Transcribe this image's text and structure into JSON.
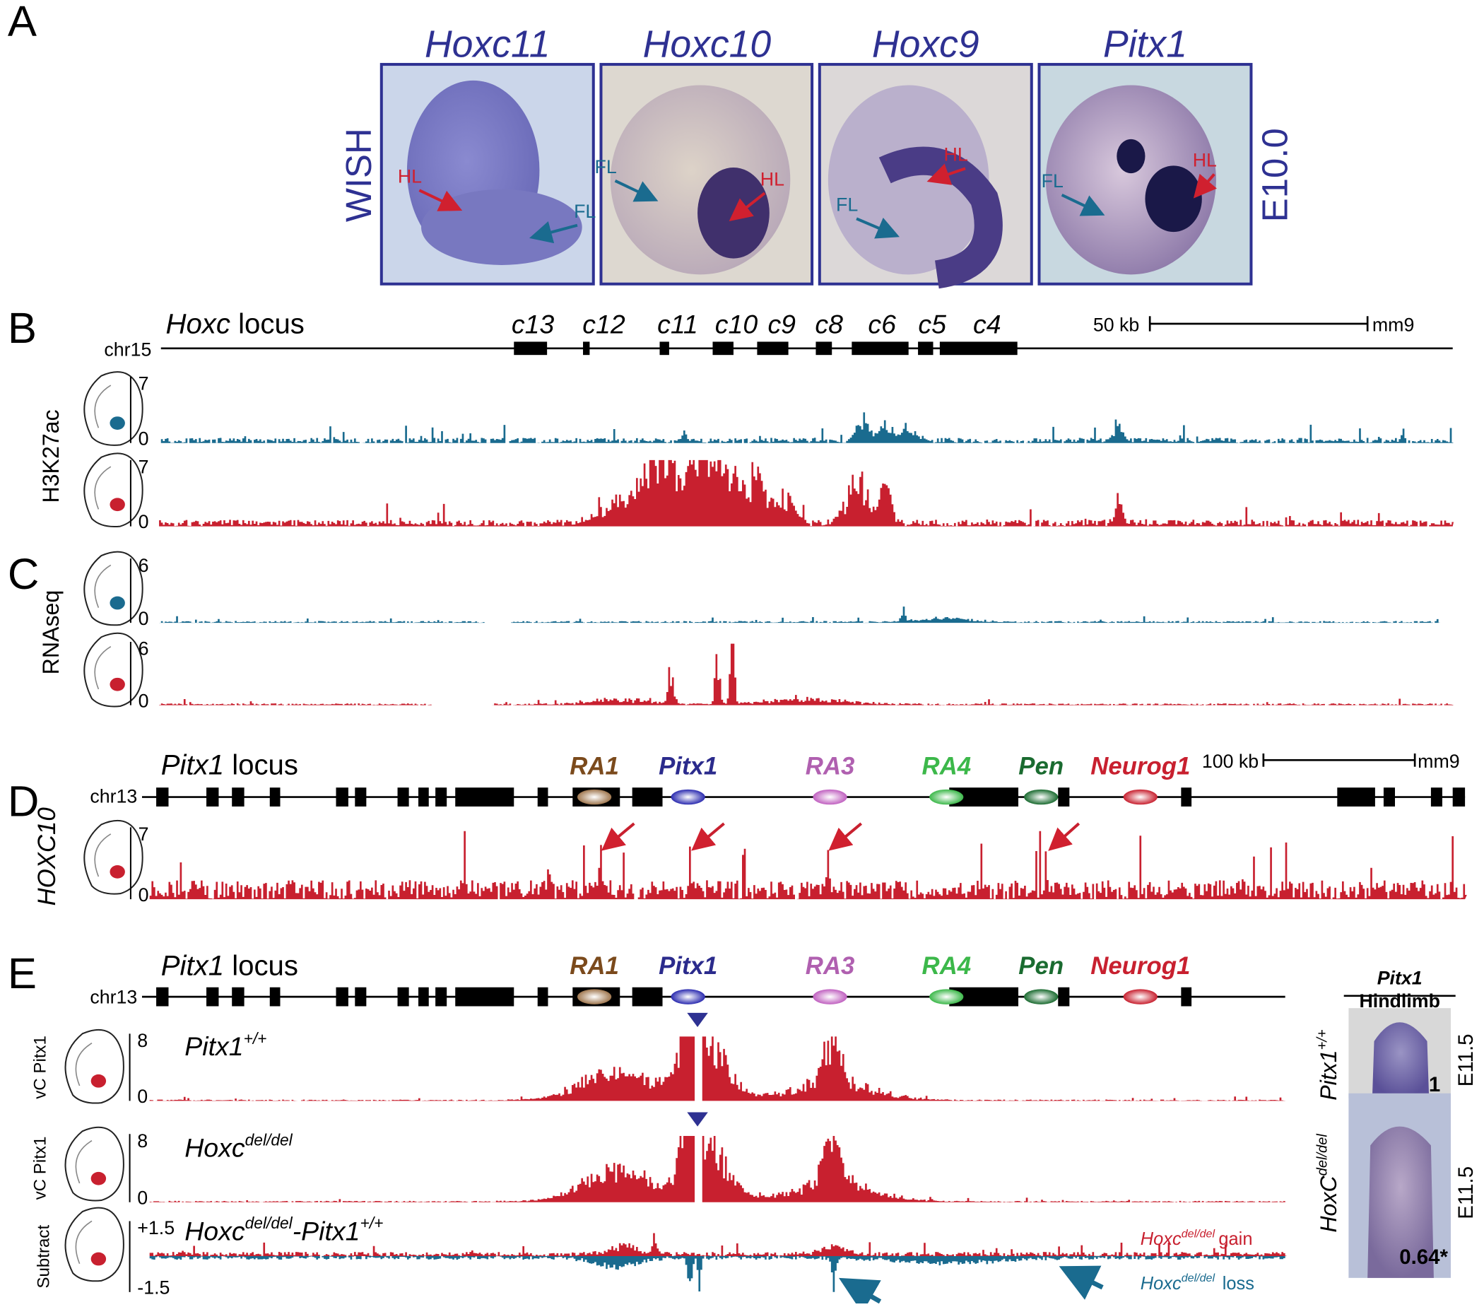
{
  "panel_a": {
    "label": "A",
    "row_label": "WISH",
    "stage": "E10.0",
    "images": [
      {
        "gene": "Hoxc11",
        "labels": [
          "HL",
          "FL"
        ]
      },
      {
        "gene": "Hoxc10",
        "labels": [
          "FL",
          "HL"
        ]
      },
      {
        "gene": "Hoxc9",
        "labels": [
          "HL",
          "FL"
        ]
      },
      {
        "gene": "Pitx1",
        "labels": [
          "FL",
          "HL"
        ]
      }
    ]
  },
  "panel_b": {
    "label": "B",
    "locus_name": "Hoxc",
    "locus_word": "locus",
    "chrom": "chr15",
    "genes": [
      "c13",
      "c12",
      "c11",
      "c10",
      "c9",
      "c8",
      "c6",
      "c5",
      "c4"
    ],
    "scale": "50 kb",
    "assembly": "mm9",
    "assay": "H3K27ac",
    "tracks": [
      {
        "max": 7,
        "min": 0
      },
      {
        "max": 7,
        "min": 0
      }
    ]
  },
  "panel_c": {
    "label": "C",
    "assay": "RNAseq",
    "tracks": [
      {
        "max": 6,
        "min": 0
      },
      {
        "max": 6,
        "min": 0
      }
    ]
  },
  "panel_d": {
    "label": "D",
    "locus_name": "Pitx1",
    "locus_word": "locus",
    "chrom": "chr13",
    "elements": [
      "RA1",
      "Pitx1",
      "RA3",
      "RA4",
      "Pen",
      "Neurog1"
    ],
    "scale": "100 kb",
    "assembly": "mm9",
    "assay": "HOXC10",
    "track": {
      "max": 7,
      "min": 0
    }
  },
  "panel_e": {
    "label": "E",
    "locus_name": "Pitx1",
    "locus_word": "locus",
    "chrom": "chr13",
    "elements": [
      "RA1",
      "Pitx1",
      "RA3",
      "RA4",
      "Pen",
      "Neurog1"
    ],
    "tracks": [
      {
        "assay": "vC Pitx1",
        "genotype": "Pitx1",
        "sup": "+/+",
        "max": 8,
        "min": 0
      },
      {
        "assay": "vC Pitx1",
        "genotype": "Hoxc",
        "sup": "del/del",
        "max": 8,
        "min": 0
      },
      {
        "assay": "Subtract",
        "max": "+1.5",
        "min": "-1.5",
        "genotype_a": "Hoxc",
        "sup_a": "del/del",
        "dash": "-",
        "genotype_b": "Pitx1",
        "sup_b": "+/+"
      }
    ],
    "legend": {
      "gene": "Hoxc",
      "sup": "del/del",
      "gain": "gain",
      "loss": "loss"
    },
    "side": {
      "title": "Pitx1",
      "subtitle": "Hindlimb",
      "images": [
        {
          "genotype": "Pitx1",
          "sup": "+/+",
          "stage": "E11.5",
          "value": "1"
        },
        {
          "genotype": "HoxC",
          "sup": "del/del",
          "stage": "E11.5",
          "value": "0.64*"
        }
      ]
    }
  }
}
